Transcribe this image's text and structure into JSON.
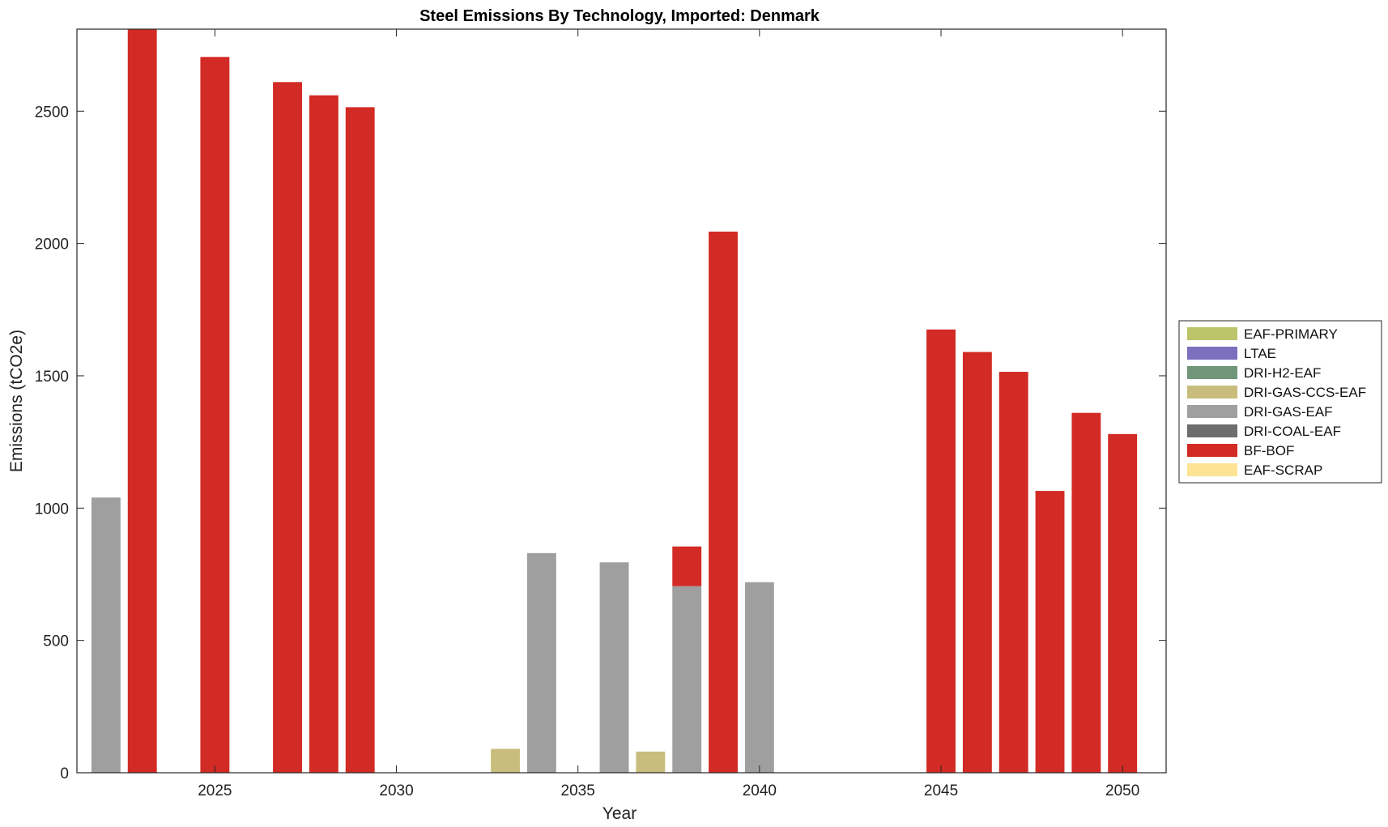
{
  "chart_data": {
    "type": "bar",
    "title": "Steel Emissions By Technology, Imported: Denmark",
    "xlabel": "Year",
    "ylabel": "Emissions (tCO2e)",
    "xlim": [
      2021.2,
      2051.2
    ],
    "ylim": [
      0,
      2810
    ],
    "xticks": [
      2025,
      2030,
      2035,
      2040,
      2045,
      2050
    ],
    "yticks": [
      0,
      500,
      1000,
      1500,
      2000,
      2500
    ],
    "legend_position": "right",
    "grid": false,
    "stacked": true,
    "x": [
      2022,
      2023,
      2024,
      2025,
      2026,
      2027,
      2028,
      2029,
      2030,
      2031,
      2032,
      2033,
      2034,
      2035,
      2036,
      2037,
      2038,
      2039,
      2040,
      2041,
      2042,
      2043,
      2044,
      2045,
      2046,
      2047,
      2048,
      2049,
      2050
    ],
    "series": [
      {
        "name": "EAF-PRIMARY",
        "color": "#BCC46A",
        "values": [
          0,
          0,
          0,
          0,
          0,
          0,
          0,
          0,
          0,
          0,
          0,
          0,
          0,
          0,
          0,
          0,
          0,
          0,
          0,
          0,
          0,
          0,
          0,
          0,
          0,
          0,
          0,
          0,
          0
        ]
      },
      {
        "name": "LTAE",
        "color": "#7B6FBE",
        "values": [
          0,
          0,
          0,
          0,
          0,
          0,
          0,
          0,
          0,
          0,
          0,
          0,
          0,
          0,
          0,
          0,
          0,
          0,
          0,
          0,
          0,
          0,
          0,
          0,
          0,
          0,
          0,
          0,
          0
        ]
      },
      {
        "name": "DRI-H2-EAF",
        "color": "#6F9678",
        "values": [
          0,
          0,
          0,
          0,
          0,
          0,
          0,
          0,
          0,
          0,
          0,
          0,
          0,
          0,
          0,
          0,
          0,
          0,
          0,
          0,
          0,
          0,
          0,
          0,
          0,
          0,
          0,
          0,
          0
        ]
      },
      {
        "name": "DRI-GAS-CCS-EAF",
        "color": "#C8BD7C",
        "values": [
          0,
          0,
          0,
          0,
          0,
          0,
          0,
          0,
          0,
          0,
          0,
          90,
          0,
          0,
          0,
          80,
          0,
          0,
          0,
          0,
          0,
          0,
          0,
          0,
          0,
          0,
          0,
          0,
          0
        ]
      },
      {
        "name": "DRI-GAS-EAF",
        "color": "#9F9F9F",
        "values": [
          1040,
          0,
          0,
          0,
          0,
          0,
          0,
          0,
          0,
          0,
          0,
          0,
          830,
          0,
          795,
          0,
          705,
          0,
          720,
          0,
          0,
          0,
          0,
          0,
          0,
          0,
          0,
          0,
          0
        ]
      },
      {
        "name": "DRI-COAL-EAF",
        "color": "#6D6D6D",
        "values": [
          0,
          0,
          0,
          0,
          0,
          0,
          0,
          0,
          0,
          0,
          0,
          0,
          0,
          0,
          0,
          0,
          0,
          0,
          0,
          0,
          0,
          0,
          0,
          0,
          0,
          0,
          0,
          0,
          0
        ]
      },
      {
        "name": "BF-BOF",
        "color": "#D22A24",
        "values": [
          0,
          2810,
          0,
          2705,
          0,
          2610,
          2560,
          2515,
          0,
          0,
          0,
          0,
          0,
          0,
          0,
          0,
          150,
          2045,
          0,
          0,
          0,
          0,
          0,
          1675,
          1590,
          1515,
          1065,
          1360,
          1280
        ]
      },
      {
        "name": "EAF-SCRAP",
        "color": "#FDE394",
        "values": [
          0,
          0,
          0,
          0,
          0,
          0,
          0,
          0,
          0,
          0,
          0,
          0,
          0,
          0,
          0,
          0,
          0,
          0,
          0,
          0,
          0,
          0,
          0,
          0,
          0,
          0,
          0,
          0,
          0
        ]
      }
    ]
  }
}
